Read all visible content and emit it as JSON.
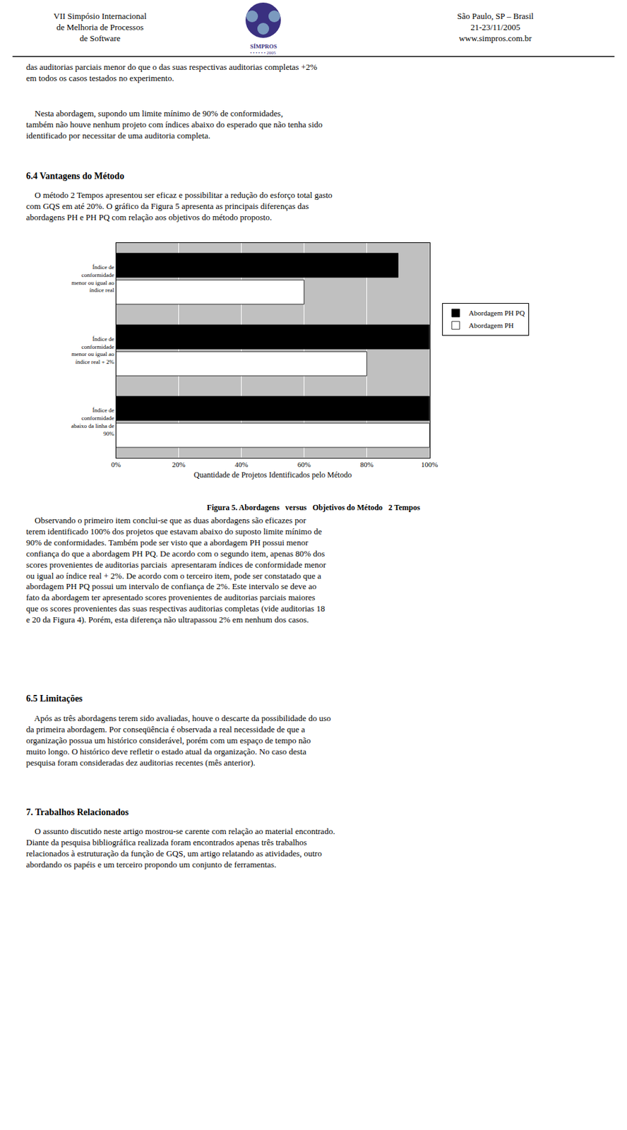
{
  "chart_data": {
    "type": "bar",
    "orientation": "horizontal",
    "title": "Figura 5. Abordagens  versus  Objetivos do Método  2 Tempos",
    "annotations": [
      "VII Simpósio Internacional\nde Melhoria de Processos\nde Software",
      "São Paulo, SP – Brasil\n21-23/11/2005\nwww.simpros.com.br",
      "SÍMPROS",
      "• • • • • • 2005",
      "das auditorias parciais menor do que o das suas respectivas auditorias completas +2%\nem todos os casos testados no experimento.",
      "    Nesta abordagem, supondo um limite mínimo de 90% de conformidades,\ntambém não houve nenhum projeto com índices abaixo do esperado que não tenha sido\nidentificado por necessitar de uma auditoria completa.",
      "6.4 Vantagens do Método",
      "    O método 2 Tempos apresentou ser eficaz e possibilitar a redução do esforço total gasto\ncom GQS em até 20%. O gráfico da Figura 5 apresenta as principais diferenças das\nabordagens PH e PH PQ com relação aos objetivos do método proposto.",
      "    Observando o primeiro item conclui-se que as duas abordagens são eficazes por\nterem identificado 100% dos projetos que estavam abaixo do suposto limite mínimo de\n90% de conformidades. Também pode ser visto que a abordagem PH possui menor\nconfiança do que a abordagem PH PQ. De acordo com o segundo item, apenas 80% dos\nscores provenientes de auditorias parciais  apresentaram índices de conformidade menor\nou igual ao índice real + 2%. De acordo com o terceiro item, pode ser constatado que a\nabordagem PH PQ possui um intervalo de confiança de 2%. Este intervalo se deve ao\nfato da abordagem ter apresentado scores provenientes de auditorias parciais maiores\nque os scores provenientes das suas respectivas auditorias completas (vide auditorias 18\ne 20 da Figura 4). Porém, esta diferença não ultrapassou 2% em nenhum dos casos.",
      "6.5 Limitações",
      "    Após as três abordagens terem sido avaliadas, houve o descarte da possibilidade do uso\nda primeira abordagem. Por conseqüência é observada a real necessidade de que a\norganização possua um histórico considerável, porém com um espaço de tempo não\nmuito longo. O histórico deve refletir o estado atual da organização. No caso desta\npesquisa foram consideradas dez auditorias recentes (mês anterior).",
      "7. Trabalhos Relacionados",
      "    O assunto discutido neste artigo mostrou-se carente com relação ao material encontrado.\nDiante da pesquisa bibliográfica realizada foram encontrados apenas três trabalhos\nrelacionados à estruturação da função de GQS, um artigo relatando as atividades, outro\nabordando os papéis e um terceiro propondo um conjunto de ferramentas."
    ],
    "categories": [
      "Índice de\nconformidade\nabaixo da linha de\n90%",
      "Índice de\nconformidade\nmenor ou igual ao\níndice real + 2%",
      "Índice de\nconformidade\nmenor ou igual ao\níndice real"
    ],
    "series": [
      {
        "name": "Abordagem PH",
        "color": "#ffffff",
        "values": [
          1.0,
          0.8,
          0.6
        ]
      },
      {
        "name": "Abordagem PH PQ",
        "color": "#000000",
        "values": [
          1.0,
          1.0,
          0.9
        ]
      }
    ],
    "xlabel": "Quantidade de Projetos Identificados pelo Método",
    "xlim": [
      0,
      1.0
    ],
    "xticks": [
      {
        "value": 0,
        "label": "0%"
      },
      {
        "value": 0.2,
        "label": "20%"
      },
      {
        "value": 0.4,
        "label": "40%"
      },
      {
        "value": 0.6,
        "label": "60%"
      },
      {
        "value": 0.8,
        "label": "80%"
      },
      {
        "value": 1.0,
        "label": "100%"
      }
    ],
    "grid": true
  }
}
